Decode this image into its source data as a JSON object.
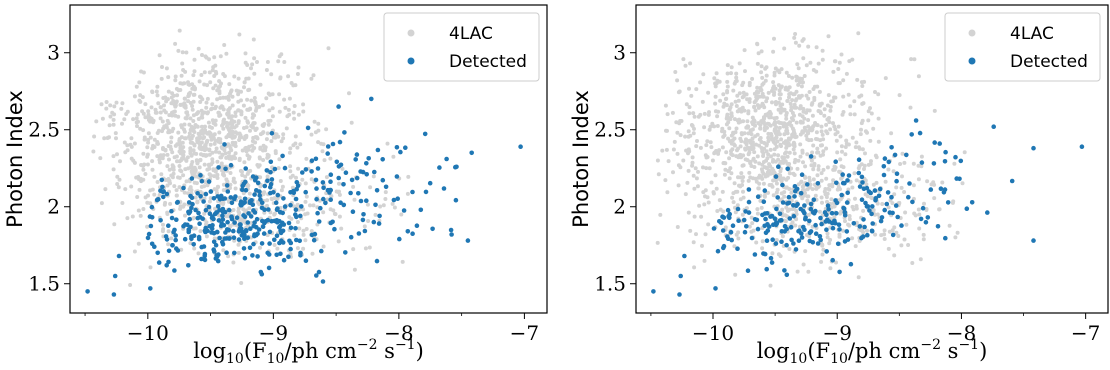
{
  "colors": {
    "all": "#d3d3d3",
    "detected": "#1f77b4"
  },
  "chart_data": [
    {
      "type": "scatter",
      "xlabel": "log10(F10/ph cm−2 s−1)",
      "ylabel": "Photon Index",
      "xlim": [
        -10.62,
        -6.82
      ],
      "ylim": [
        1.31,
        3.31
      ],
      "xticks": [
        -10,
        -9,
        -8,
        -7
      ],
      "xtick_labels": [
        "−10",
        "−9",
        "−8",
        "−7"
      ],
      "yticks": [
        1.5,
        2,
        2.5,
        3
      ],
      "ytick_labels": [
        "1.5",
        "2",
        "2.5",
        "3"
      ],
      "grid": false,
      "legend_position": "top-right",
      "series": [
        {
          "name": "4LAC",
          "color": "#d3d3d3",
          "n_points": 1300
        },
        {
          "name": "Detected",
          "color": "#1f77b4",
          "n_points": 430,
          "x": [
            -10.48,
            -10.27,
            -10.26,
            -10.23,
            -9.98,
            -9.85,
            -8.48,
            -8.22,
            -7.62,
            -7.42,
            -7.03,
            -8.2,
            -7.58,
            -7.45
          ],
          "y": [
            1.45,
            1.43,
            1.55,
            1.68,
            1.47,
            1.62,
            2.65,
            2.7,
            2.31,
            2.35,
            2.39,
            1.9,
            1.82,
            1.78
          ]
        }
      ]
    },
    {
      "type": "scatter",
      "xlabel": "log10(F10/ph cm−2 s−1)",
      "ylabel": "Photon Index",
      "xlim": [
        -10.62,
        -6.82
      ],
      "ylim": [
        1.31,
        3.31
      ],
      "xticks": [
        -10,
        -9,
        -8,
        -7
      ],
      "xtick_labels": [
        "−10",
        "−9",
        "−8",
        "−7"
      ],
      "yticks": [
        1.5,
        2,
        2.5,
        3
      ],
      "ytick_labels": [
        "1.5",
        "2",
        "2.5",
        "3"
      ],
      "grid": false,
      "legend_position": "top-right",
      "series": [
        {
          "name": "4LAC",
          "color": "#d3d3d3",
          "n_points": 1300
        },
        {
          "name": "Detected",
          "color": "#1f77b4",
          "n_points": 260,
          "x": [
            -10.48,
            -10.27,
            -10.26,
            -10.23,
            -9.98,
            -8.4,
            -7.74,
            -7.42,
            -7.03,
            -7.42
          ],
          "y": [
            1.45,
            1.43,
            1.55,
            1.68,
            1.47,
            2.47,
            2.52,
            2.38,
            2.39,
            1.78
          ]
        }
      ]
    }
  ],
  "panels": [
    {
      "legend": [
        "4LAC",
        "Detected"
      ],
      "ylabel": "Photon Index",
      "xlabel_prefix": "log",
      "xlabel_sub": "10",
      "xlabel_main": "(F",
      "xlabel_fsub": "10",
      "xlabel_rest": "/ph cm",
      "xlabel_exp1": "−2",
      "xlabel_mid": " s",
      "xlabel_exp2": "−1",
      "xlabel_end": ")"
    },
    {
      "legend": [
        "4LAC",
        "Detected"
      ],
      "ylabel": "Photon Index",
      "xlabel_prefix": "log",
      "xlabel_sub": "10",
      "xlabel_main": "(F",
      "xlabel_fsub": "10",
      "xlabel_rest": "/ph cm",
      "xlabel_exp1": "−2",
      "xlabel_mid": " s",
      "xlabel_exp2": "−1",
      "xlabel_end": ")"
    }
  ]
}
